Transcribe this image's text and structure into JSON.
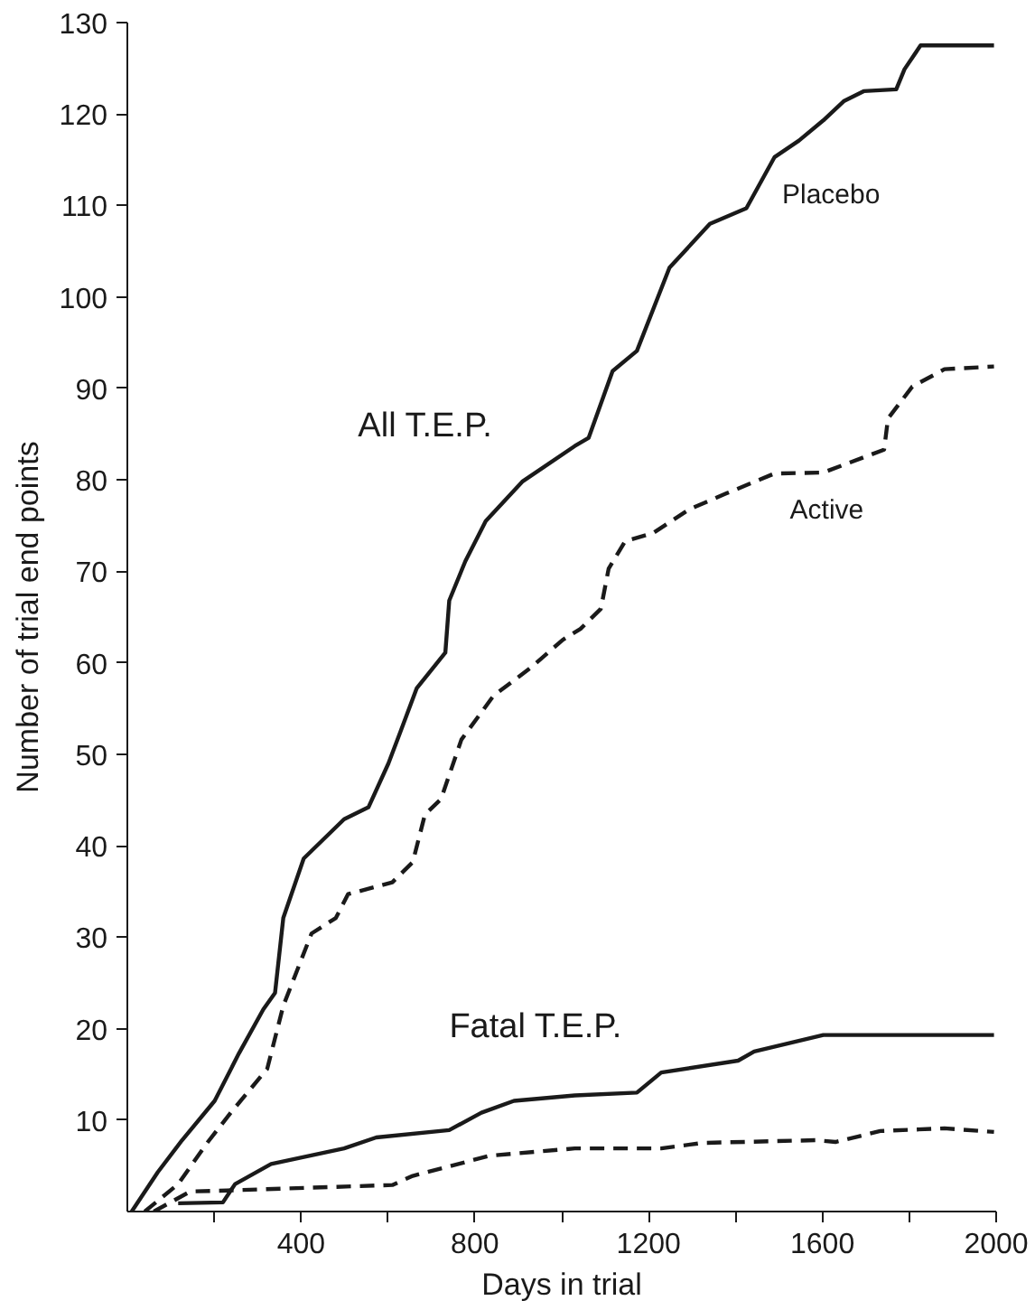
{
  "chart_data": {
    "type": "line",
    "xlabel": "Days in trial",
    "ylabel": "Number of trial end points",
    "xlim": [
      0,
      2000
    ],
    "ylim": [
      0,
      130
    ],
    "xticks": [
      {
        "value": 200,
        "label": null
      },
      400,
      {
        "value": 600,
        "label": null
      },
      800,
      {
        "value": 1000,
        "label": null
      },
      1200,
      {
        "value": 1400,
        "label": null
      },
      1600,
      {
        "value": 1800,
        "label": null
      },
      2000
    ],
    "yticks": [
      10,
      20,
      30,
      40,
      50,
      60,
      70,
      80,
      90,
      100,
      110,
      120,
      130
    ],
    "grid": false,
    "legend": false,
    "marker": "none",
    "series": [
      {
        "name": "Placebo",
        "color": "#1a1a1a",
        "line_style": "solid",
        "x": [
          10,
          70,
          126,
          201,
          257,
          313,
          340,
          359,
          406,
          499,
          555,
          601,
          629,
          666,
          732,
          741,
          778,
          825,
          909,
          1030,
          1062,
          1117,
          1173,
          1248,
          1341,
          1425,
          1490,
          1546,
          1602,
          1649,
          1695,
          1770,
          1789,
          1826,
          1995
        ],
        "values": [
          0,
          4.3,
          7.8,
          12.1,
          17.3,
          22.1,
          23.9,
          32.1,
          38.6,
          42.9,
          44.2,
          49,
          52.5,
          57.2,
          61.1,
          66.8,
          71.1,
          75.5,
          79.8,
          83.7,
          84.6,
          91.9,
          94.1,
          103.2,
          108,
          109.7,
          115.3,
          117.1,
          119.3,
          121.4,
          122.5,
          122.7,
          124.9,
          127.5,
          127.5
        ]
      },
      {
        "name": "Active",
        "color": "#1a1a1a",
        "line_style": "dashed",
        "x": [
          40,
          117,
          182,
          238,
          322,
          359,
          424,
          480,
          508,
          610,
          657,
          685,
          722,
          769,
          843,
          927,
          1002,
          1043,
          1090,
          1108,
          1146,
          1211,
          1294,
          1378,
          1490,
          1602,
          1742,
          1751,
          1807,
          1881,
          1995
        ],
        "values": [
          0,
          3,
          7.4,
          10.8,
          15.6,
          22.5,
          30.4,
          32.1,
          34.7,
          36,
          38.2,
          43.4,
          45.1,
          51.6,
          56.4,
          59.4,
          62.5,
          63.7,
          65.9,
          70.3,
          73.3,
          74.2,
          76.8,
          78.5,
          80.7,
          80.8,
          83.3,
          86.7,
          90.2,
          92.1,
          92.4
        ]
      },
      {
        "color": "#1a1a1a",
        "line_style": "solid",
        "x": [
          117,
          220,
          248,
          331,
          499,
          573,
          741,
          815,
          890,
          1030,
          1173,
          1229,
          1406,
          1443,
          1602,
          1995
        ],
        "values": [
          0.9,
          1,
          3,
          5.2,
          6.9,
          8.1,
          8.9,
          10.8,
          12.1,
          12.7,
          13,
          15.2,
          16.5,
          17.5,
          19.3,
          19.3
        ]
      },
      {
        "color": "#1a1a1a",
        "line_style": "dashed",
        "x": [
          61,
          145,
          229,
          610,
          657,
          834,
          1030,
          1229,
          1323,
          1584,
          1630,
          1733,
          1881,
          1995
        ],
        "values": [
          0,
          2.2,
          2.3,
          2.9,
          3.9,
          6.1,
          6.9,
          6.9,
          7.5,
          7.8,
          7.6,
          8.8,
          9.1,
          8.7
        ]
      }
    ],
    "annotations": [
      "All T.E.P.",
      "Fatal T.E.P."
    ]
  }
}
